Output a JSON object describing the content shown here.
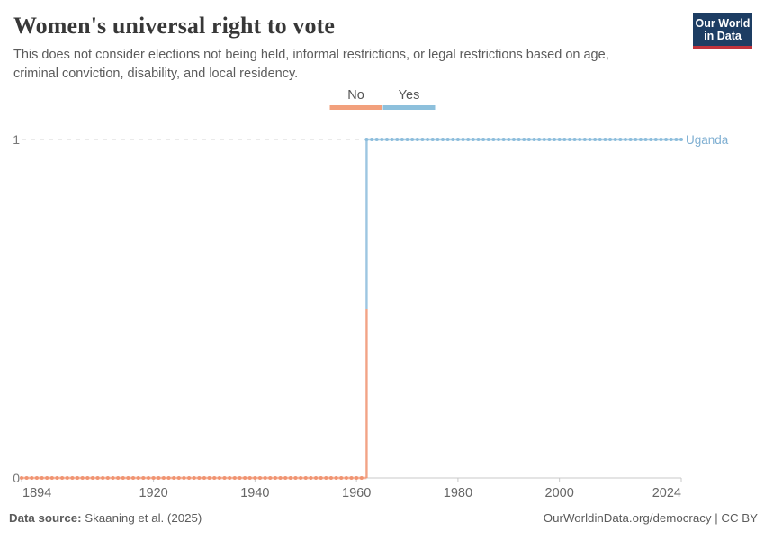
{
  "header": {
    "title": "Women's universal right to vote",
    "subtitle": "This does not consider elections not being held, informal restrictions, or legal restrictions based on age, criminal conviction, disability, and local residency.",
    "logo": {
      "line1": "Our World",
      "line2": "in Data",
      "bg_color": "#1d3d63",
      "accent_color": "#c0333c"
    }
  },
  "legend": {
    "items": [
      {
        "label": "No",
        "color": "#f2a07c"
      },
      {
        "label": "Yes",
        "color": "#8dc0dc"
      }
    ]
  },
  "chart_data": {
    "type": "line",
    "step": true,
    "entity": "Uganda",
    "entity_color": "#7fafd2",
    "x_range": [
      1894,
      2024
    ],
    "x_ticks": [
      1894,
      1920,
      1940,
      1960,
      1980,
      2000,
      2024
    ],
    "y_ticks": [
      0,
      1
    ],
    "ylim": [
      0,
      1
    ],
    "x_step_interval": 1,
    "transition_year": 1962,
    "segments": [
      {
        "label": "No",
        "value": 0,
        "from_year": 1894,
        "to_year": 1961,
        "line_color": "#f6b298",
        "dot_color": "#f09472"
      },
      {
        "label": "Yes",
        "value": 1,
        "from_year": 1962,
        "to_year": 2024,
        "line_color": "#abcfe5",
        "dot_color": "#8cbddc"
      }
    ],
    "grid": {
      "dashed_line_at": 1,
      "grid_color": "#d5d5d5",
      "axis_color": "#c8c8c8",
      "tick_text_color": "#666666",
      "y_text_color": "#777777"
    }
  },
  "footer": {
    "source_label": "Data source:",
    "source": "Skaaning et al. (2025)",
    "right": "OurWorldinData.org/democracy | CC BY"
  }
}
